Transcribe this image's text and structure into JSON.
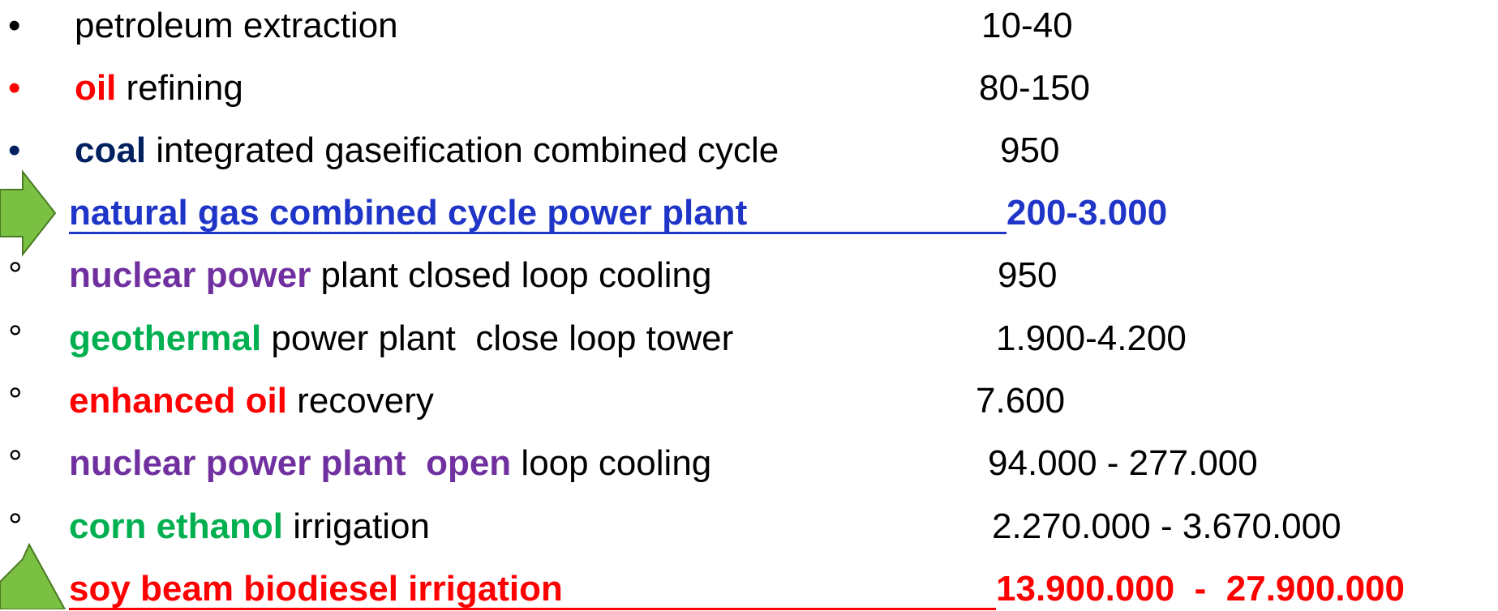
{
  "rows": [
    {
      "bullet": "•",
      "label": [
        "petroleum extraction"
      ],
      "value": "10-40"
    },
    {
      "bullet": "•",
      "label": [
        "oil",
        " refining"
      ],
      "value": "80-150"
    },
    {
      "bullet": "•",
      "label": [
        "coal",
        " integrated gaseification combined cycle"
      ],
      "value": "950"
    },
    {
      "label": [
        "natural gas combined cycle power plant"
      ],
      "value": "200-3.000"
    },
    {
      "bullet": "°",
      "label": [
        "nuclear power",
        " plant closed loop cooling"
      ],
      "value": "950"
    },
    {
      "bullet": "°",
      "label": [
        "geothermal",
        " power plant  close loop tower"
      ],
      "value": "1.900-4.200"
    },
    {
      "bullet": "°",
      "label": [
        "enhanced oil",
        " recovery"
      ],
      "value": "7.600"
    },
    {
      "bullet": "°",
      "label": [
        "nuclear power plant  open",
        " loop cooling"
      ],
      "value": "94.000 - 277.000"
    },
    {
      "bullet": "°",
      "label": [
        "corn ethanol",
        " irrigation"
      ],
      "value": "2.270.000 - 3.670.000"
    },
    {
      "label": [
        "soy beam biodiesel irrigation"
      ],
      "value": "13.900.000  -  27.900.000"
    }
  ]
}
